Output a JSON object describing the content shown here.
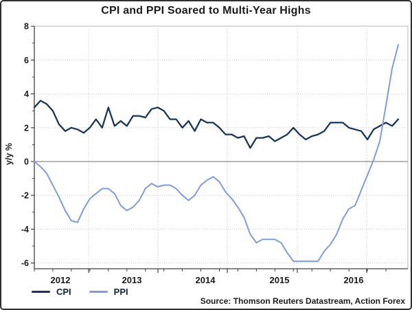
{
  "chart_data": {
    "type": "line",
    "title": "CPI and PPI Soared to Multi-Year Highs",
    "ylabel": "y/y %",
    "ylim": [
      -6.4,
      8
    ],
    "yticks": [
      8,
      6,
      4,
      2,
      0,
      -2,
      -4,
      -6
    ],
    "x_year_labels": [
      "2012",
      "2013",
      "2014",
      "2015",
      "2016"
    ],
    "grid": true,
    "legend_position": "bottom-left",
    "source_note": "Source: Thomson Reuters Datastream, Action Forex",
    "x": [
      "Feb 2012",
      "Mar 2012",
      "Apr 2012",
      "May 2012",
      "Jun 2012",
      "Jul 2012",
      "Aug 2012",
      "Sep 2012",
      "Oct 2012",
      "Nov 2012",
      "Dec 2012",
      "Jan 2013",
      "Feb 2013",
      "Mar 2013",
      "Apr 2013",
      "May 2013",
      "Jun 2013",
      "Jul 2013",
      "Aug 2013",
      "Sep 2013",
      "Oct 2013",
      "Nov 2013",
      "Dec 2013",
      "Jan 2014",
      "Feb 2014",
      "Mar 2014",
      "Apr 2014",
      "May 2014",
      "Jun 2014",
      "Jul 2014",
      "Aug 2014",
      "Sep 2014",
      "Oct 2014",
      "Nov 2014",
      "Dec 2014",
      "Jan 2015",
      "Feb 2015",
      "Mar 2015",
      "Apr 2015",
      "May 2015",
      "Jun 2015",
      "Jul 2015",
      "Aug 2015",
      "Sep 2015",
      "Oct 2015",
      "Nov 2015",
      "Dec 2015",
      "Jan 2016",
      "Feb 2016",
      "Mar 2016",
      "Apr 2016",
      "May 2016",
      "Jun 2016",
      "Jul 2016",
      "Aug 2016",
      "Sep 2016",
      "Oct 2016",
      "Nov 2016",
      "Dec 2016",
      "Jan 2017"
    ],
    "series": [
      {
        "name": "CPI",
        "color": "#16355c",
        "values": [
          3.2,
          3.6,
          3.4,
          3.0,
          2.2,
          1.8,
          2.0,
          1.9,
          1.7,
          2.0,
          2.5,
          2.0,
          3.2,
          2.1,
          2.4,
          2.1,
          2.7,
          2.7,
          2.6,
          3.1,
          3.2,
          3.0,
          2.5,
          2.5,
          2.0,
          2.4,
          1.8,
          2.5,
          2.3,
          2.3,
          2.0,
          1.6,
          1.6,
          1.4,
          1.5,
          0.8,
          1.4,
          1.4,
          1.5,
          1.2,
          1.4,
          1.6,
          2.0,
          1.6,
          1.3,
          1.5,
          1.6,
          1.8,
          2.3,
          2.3,
          2.3,
          2.0,
          1.9,
          1.8,
          1.3,
          1.9,
          2.1,
          2.3,
          2.1,
          2.5
        ]
      },
      {
        "name": "PPI",
        "color": "#7b9ce0",
        "values": [
          0.0,
          -0.3,
          -0.7,
          -1.4,
          -2.1,
          -2.9,
          -3.5,
          -3.6,
          -2.8,
          -2.2,
          -1.9,
          -1.6,
          -1.6,
          -1.9,
          -2.6,
          -2.9,
          -2.7,
          -2.3,
          -1.6,
          -1.3,
          -1.5,
          -1.4,
          -1.4,
          -1.6,
          -2.0,
          -2.3,
          -2.0,
          -1.4,
          -1.1,
          -0.9,
          -1.2,
          -1.8,
          -2.2,
          -2.7,
          -3.3,
          -4.3,
          -4.8,
          -4.6,
          -4.6,
          -4.6,
          -4.8,
          -5.4,
          -5.9,
          -5.9,
          -5.9,
          -5.9,
          -5.9,
          -5.3,
          -4.9,
          -4.3,
          -3.4,
          -2.8,
          -2.6,
          -1.7,
          -0.8,
          0.1,
          1.2,
          3.3,
          5.5,
          6.9
        ]
      }
    ]
  }
}
